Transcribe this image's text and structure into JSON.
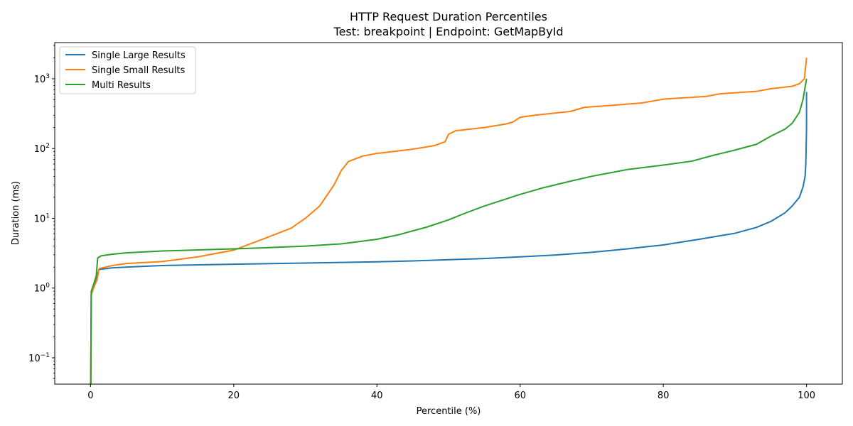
{
  "chart_data": {
    "type": "line",
    "title": "HTTP Request Duration Percentiles",
    "subtitle": "Test: breakpoint | Endpoint: GetMapById",
    "xlabel": "Percentile (%)",
    "ylabel": "Duration (ms)",
    "xlim": [
      -5,
      105
    ],
    "ylim": [
      0.042,
      3300
    ],
    "yscale": "log",
    "xticks": [
      0,
      20,
      40,
      60,
      80,
      100
    ],
    "xtick_labels": [
      "0",
      "20",
      "40",
      "60",
      "80",
      "100"
    ],
    "yticks": [
      0.1,
      1,
      10,
      100,
      1000
    ],
    "ytick_labels": [
      {
        "base": "10",
        "exp": "−1"
      },
      {
        "base": "10",
        "exp": "0"
      },
      {
        "base": "10",
        "exp": "1"
      },
      {
        "base": "10",
        "exp": "2"
      },
      {
        "base": "10",
        "exp": "3"
      }
    ],
    "grid": false,
    "legend_position": "upper-left",
    "series": [
      {
        "name": "Single Large Results",
        "color": "#1f77b4",
        "points": [
          [
            0,
            0.01
          ],
          [
            0.1,
            0.8
          ],
          [
            0.3,
            1.0
          ],
          [
            0.8,
            1.4
          ],
          [
            1.2,
            1.85
          ],
          [
            3,
            1.95
          ],
          [
            6,
            2.02
          ],
          [
            10,
            2.1
          ],
          [
            20,
            2.2
          ],
          [
            30,
            2.28
          ],
          [
            40,
            2.38
          ],
          [
            45,
            2.45
          ],
          [
            50,
            2.55
          ],
          [
            55,
            2.65
          ],
          [
            60,
            2.8
          ],
          [
            65,
            2.98
          ],
          [
            70,
            3.25
          ],
          [
            75,
            3.65
          ],
          [
            80,
            4.15
          ],
          [
            85,
            5.0
          ],
          [
            90,
            6.1
          ],
          [
            93,
            7.4
          ],
          [
            95,
            9.0
          ],
          [
            97,
            12.0
          ],
          [
            98,
            15.0
          ],
          [
            99,
            20.0
          ],
          [
            99.5,
            28.0
          ],
          [
            99.8,
            40.0
          ],
          [
            99.9,
            60.0
          ],
          [
            100,
            200.0
          ],
          [
            100,
            650.0
          ]
        ]
      },
      {
        "name": "Single Small Results",
        "color": "#ff7f0e",
        "points": [
          [
            0,
            0.01
          ],
          [
            0.1,
            0.8
          ],
          [
            0.5,
            1.05
          ],
          [
            0.9,
            1.3
          ],
          [
            1.2,
            1.9
          ],
          [
            3,
            2.1
          ],
          [
            5,
            2.25
          ],
          [
            10,
            2.4
          ],
          [
            15,
            2.8
          ],
          [
            20,
            3.5
          ],
          [
            24,
            5.0
          ],
          [
            28,
            7.2
          ],
          [
            30,
            10.0
          ],
          [
            32,
            15.0
          ],
          [
            34,
            30.0
          ],
          [
            35,
            48.0
          ],
          [
            36,
            65.0
          ],
          [
            38,
            78.0
          ],
          [
            40,
            85.0
          ],
          [
            45,
            98.0
          ],
          [
            48,
            110.0
          ],
          [
            49.5,
            125.0
          ],
          [
            50,
            160.0
          ],
          [
            51,
            180.0
          ],
          [
            55,
            200.0
          ],
          [
            58,
            225.0
          ],
          [
            59,
            240.0
          ],
          [
            60,
            280.0
          ],
          [
            62,
            300.0
          ],
          [
            67,
            340.0
          ],
          [
            69,
            390.0
          ],
          [
            72,
            410.0
          ],
          [
            77,
            450.0
          ],
          [
            80,
            510.0
          ],
          [
            86,
            560.0
          ],
          [
            88,
            610.0
          ],
          [
            93,
            660.0
          ],
          [
            95,
            720.0
          ],
          [
            98,
            780.0
          ],
          [
            99,
            850.0
          ],
          [
            99.7,
            1000.0
          ],
          [
            100,
            2000.0
          ]
        ]
      },
      {
        "name": "Multi Results",
        "color": "#2ca02c",
        "points": [
          [
            0,
            0.01
          ],
          [
            0.1,
            0.9
          ],
          [
            0.4,
            1.1
          ],
          [
            0.8,
            1.5
          ],
          [
            1.0,
            2.7
          ],
          [
            1.5,
            2.9
          ],
          [
            3,
            3.05
          ],
          [
            5,
            3.2
          ],
          [
            10,
            3.4
          ],
          [
            20,
            3.65
          ],
          [
            25,
            3.8
          ],
          [
            30,
            4.0
          ],
          [
            35,
            4.3
          ],
          [
            40,
            5.0
          ],
          [
            43,
            5.8
          ],
          [
            47,
            7.5
          ],
          [
            50,
            9.5
          ],
          [
            52,
            11.5
          ],
          [
            55,
            15.0
          ],
          [
            60,
            22.0
          ],
          [
            63,
            27.0
          ],
          [
            67,
            34.0
          ],
          [
            70,
            40.0
          ],
          [
            75,
            50.0
          ],
          [
            80,
            58.0
          ],
          [
            84,
            66.0
          ],
          [
            87,
            80.0
          ],
          [
            90,
            95.0
          ],
          [
            93,
            115.0
          ],
          [
            95,
            150.0
          ],
          [
            97,
            190.0
          ],
          [
            98,
            230.0
          ],
          [
            99,
            330.0
          ],
          [
            99.5,
            500.0
          ],
          [
            100,
            1000.0
          ]
        ]
      }
    ]
  }
}
